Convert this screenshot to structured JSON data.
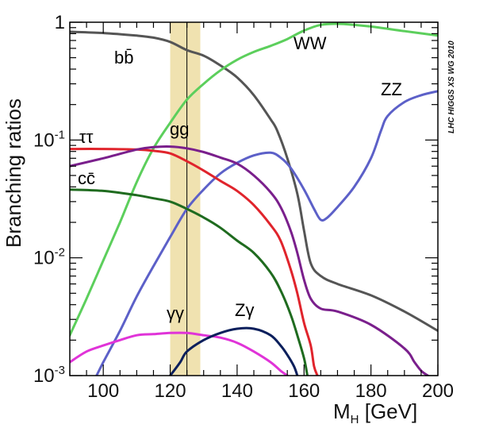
{
  "chart_data": {
    "type": "line",
    "title": "",
    "xlabel": "M_H [GeV]",
    "xlabel_main": "M",
    "xlabel_sub": "H",
    "xlabel_unit": " [GeV]",
    "ylabel": "Branching ratios",
    "xlim": [
      90,
      200
    ],
    "ylim": [
      0.001,
      1
    ],
    "yscale": "log",
    "x_ticks": [
      100,
      120,
      140,
      160,
      180,
      200
    ],
    "y_ticks": [
      {
        "value": 1,
        "base": "1",
        "exp": ""
      },
      {
        "value": 0.1,
        "base": "10",
        "exp": "-1"
      },
      {
        "value": 0.01,
        "base": "10",
        "exp": "-2"
      },
      {
        "value": 0.001,
        "base": "10",
        "exp": "-3"
      }
    ],
    "watermark": "LHC HIGGS XS WG 2010",
    "band": {
      "x_min": 120,
      "x_max": 129,
      "center": 125,
      "color": "#f0e2b0"
    },
    "series": [
      {
        "name": "bb",
        "label": "bb̄",
        "color": "#555555",
        "points": [
          [
            90,
            0.83
          ],
          [
            100,
            0.81
          ],
          [
            110,
            0.77
          ],
          [
            115,
            0.74
          ],
          [
            120,
            0.68
          ],
          [
            125,
            0.58
          ],
          [
            130,
            0.52
          ],
          [
            135,
            0.43
          ],
          [
            140,
            0.34
          ],
          [
            145,
            0.24
          ],
          [
            150,
            0.15
          ],
          [
            152,
            0.12
          ],
          [
            155,
            0.07
          ],
          [
            158,
            0.035
          ],
          [
            160,
            0.017
          ],
          [
            162,
            0.009
          ],
          [
            165,
            0.007
          ],
          [
            170,
            0.006
          ],
          [
            180,
            0.0048
          ],
          [
            190,
            0.0035
          ],
          [
            200,
            0.0024
          ]
        ]
      },
      {
        "name": "WW",
        "label": "WW",
        "color": "#5ccf5c",
        "points": [
          [
            90,
            0.0022
          ],
          [
            95,
            0.0045
          ],
          [
            100,
            0.0095
          ],
          [
            105,
            0.02
          ],
          [
            110,
            0.044
          ],
          [
            115,
            0.085
          ],
          [
            120,
            0.14
          ],
          [
            125,
            0.22
          ],
          [
            130,
            0.3
          ],
          [
            135,
            0.39
          ],
          [
            140,
            0.48
          ],
          [
            145,
            0.56
          ],
          [
            150,
            0.63
          ],
          [
            155,
            0.72
          ],
          [
            160,
            0.85
          ],
          [
            165,
            0.95
          ],
          [
            170,
            0.97
          ],
          [
            175,
            0.95
          ],
          [
            180,
            0.92
          ],
          [
            190,
            0.84
          ],
          [
            200,
            0.77
          ]
        ]
      },
      {
        "name": "ZZ",
        "label": "ZZ",
        "color": "#5c60c8",
        "points": [
          [
            98,
            0.001
          ],
          [
            100,
            0.0013
          ],
          [
            105,
            0.0024
          ],
          [
            110,
            0.0047
          ],
          [
            115,
            0.0085
          ],
          [
            120,
            0.015
          ],
          [
            125,
            0.026
          ],
          [
            130,
            0.038
          ],
          [
            135,
            0.052
          ],
          [
            140,
            0.064
          ],
          [
            145,
            0.074
          ],
          [
            150,
            0.078
          ],
          [
            153,
            0.071
          ],
          [
            156,
            0.058
          ],
          [
            160,
            0.038
          ],
          [
            163,
            0.026
          ],
          [
            165,
            0.021
          ],
          [
            167,
            0.022
          ],
          [
            170,
            0.027
          ],
          [
            175,
            0.04
          ],
          [
            180,
            0.07
          ],
          [
            183,
            0.12
          ],
          [
            185,
            0.16
          ],
          [
            190,
            0.21
          ],
          [
            195,
            0.24
          ],
          [
            200,
            0.26
          ]
        ]
      },
      {
        "name": "tautau",
        "label": "ττ",
        "color": "#e0242c",
        "points": [
          [
            90,
            0.084
          ],
          [
            100,
            0.084
          ],
          [
            110,
            0.083
          ],
          [
            115,
            0.081
          ],
          [
            120,
            0.077
          ],
          [
            125,
            0.066
          ],
          [
            130,
            0.055
          ],
          [
            135,
            0.045
          ],
          [
            140,
            0.037
          ],
          [
            145,
            0.028
          ],
          [
            150,
            0.019
          ],
          [
            153,
            0.014
          ],
          [
            156,
            0.008
          ],
          [
            158,
            0.005
          ],
          [
            160,
            0.0028
          ],
          [
            162,
            0.0018
          ],
          [
            163,
            0.0012
          ],
          [
            164,
            0.001
          ]
        ]
      },
      {
        "name": "gg",
        "label": "gg",
        "color": "#7a1f8c",
        "points": [
          [
            90,
            0.06
          ],
          [
            100,
            0.07
          ],
          [
            110,
            0.083
          ],
          [
            115,
            0.087
          ],
          [
            120,
            0.088
          ],
          [
            125,
            0.085
          ],
          [
            130,
            0.079
          ],
          [
            135,
            0.071
          ],
          [
            140,
            0.063
          ],
          [
            145,
            0.05
          ],
          [
            150,
            0.036
          ],
          [
            153,
            0.027
          ],
          [
            156,
            0.017
          ],
          [
            158,
            0.011
          ],
          [
            160,
            0.0065
          ],
          [
            162,
            0.0045
          ],
          [
            165,
            0.0037
          ],
          [
            170,
            0.0035
          ],
          [
            180,
            0.0027
          ],
          [
            190,
            0.0017
          ],
          [
            193,
            0.0013
          ],
          [
            195,
            0.0011
          ],
          [
            197,
            0.001
          ]
        ]
      },
      {
        "name": "cc",
        "label": "cc̄",
        "color": "#1f6b1f",
        "points": [
          [
            90,
            0.038
          ],
          [
            100,
            0.037
          ],
          [
            110,
            0.034
          ],
          [
            115,
            0.032
          ],
          [
            120,
            0.03
          ],
          [
            125,
            0.026
          ],
          [
            130,
            0.022
          ],
          [
            135,
            0.018
          ],
          [
            140,
            0.014
          ],
          [
            145,
            0.011
          ],
          [
            150,
            0.0075
          ],
          [
            153,
            0.0053
          ],
          [
            156,
            0.0033
          ],
          [
            158,
            0.0022
          ],
          [
            160,
            0.0014
          ],
          [
            161,
            0.001
          ]
        ]
      },
      {
        "name": "gammagamma",
        "label": "γγ",
        "color": "#e033d8",
        "points": [
          [
            90,
            0.0013
          ],
          [
            95,
            0.0016
          ],
          [
            100,
            0.0018
          ],
          [
            105,
            0.002
          ],
          [
            110,
            0.0022
          ],
          [
            115,
            0.00225
          ],
          [
            120,
            0.0023
          ],
          [
            125,
            0.0023
          ],
          [
            130,
            0.0022
          ],
          [
            135,
            0.0021
          ],
          [
            140,
            0.0019
          ],
          [
            145,
            0.0016
          ],
          [
            150,
            0.0013
          ],
          [
            153,
            0.0011
          ],
          [
            155,
            0.001
          ]
        ]
      },
      {
        "name": "Zgamma",
        "label": "Zγ",
        "color": "#0b1f5c",
        "points": [
          [
            120,
            0.001
          ],
          [
            123,
            0.0013
          ],
          [
            125,
            0.0016
          ],
          [
            130,
            0.002
          ],
          [
            135,
            0.0023
          ],
          [
            140,
            0.0025
          ],
          [
            145,
            0.0025
          ],
          [
            150,
            0.0022
          ],
          [
            153,
            0.0018
          ],
          [
            155,
            0.0015
          ],
          [
            157,
            0.0012
          ],
          [
            158,
            0.001
          ]
        ]
      }
    ]
  }
}
